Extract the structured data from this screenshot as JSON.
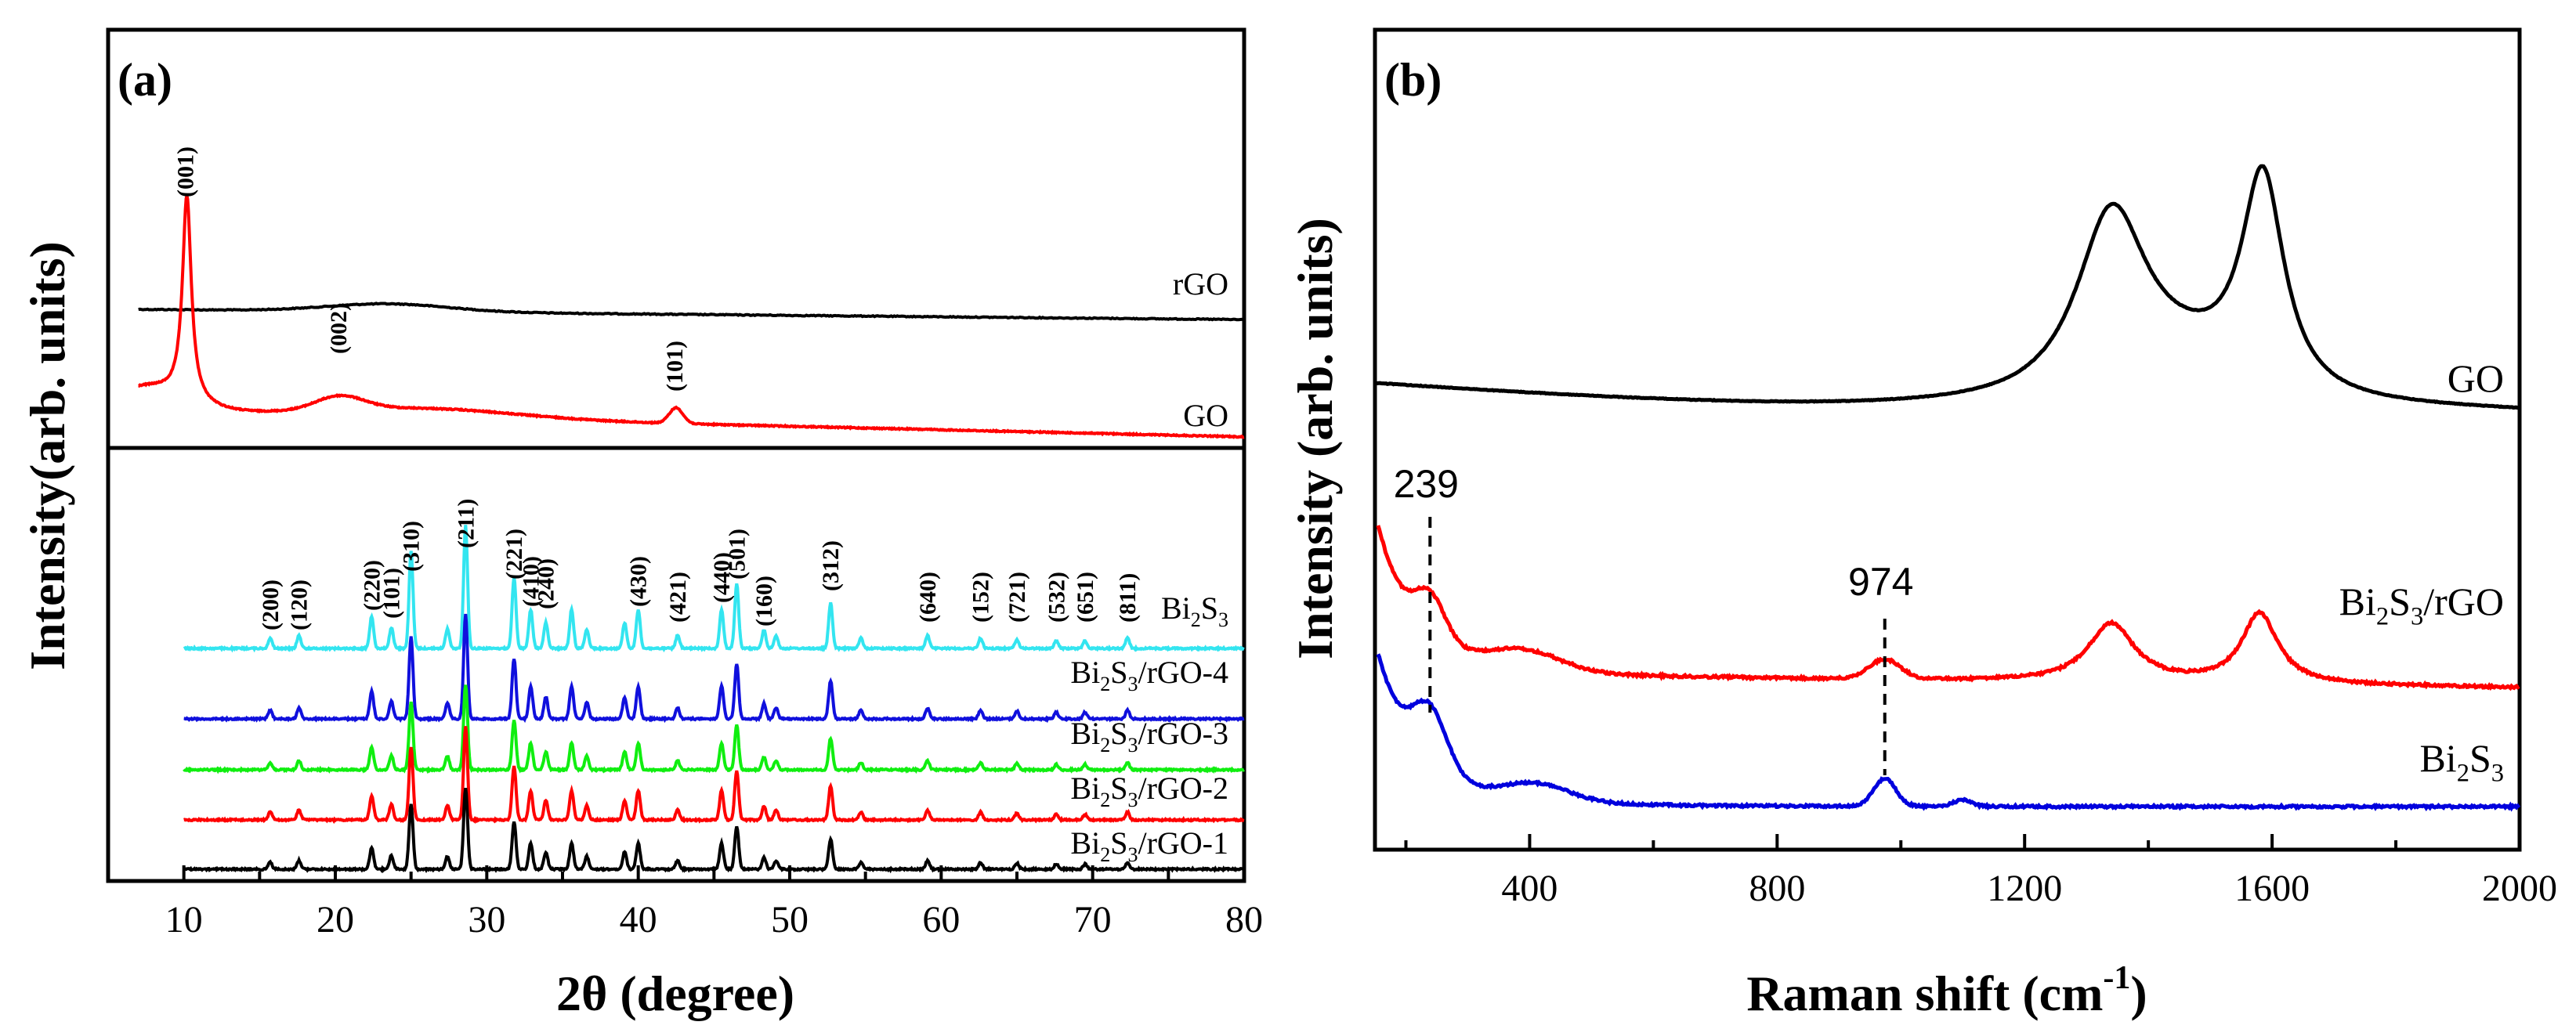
{
  "chart_data": [
    {
      "panel_label": "(a)",
      "type": "line",
      "xlabel": "2θ (degree)",
      "ylabel": "Intensity(arb. units)",
      "xlim": [
        5,
        80
      ],
      "x_ticks": [
        10,
        20,
        30,
        40,
        50,
        60,
        70,
        80
      ],
      "x_tick_labels": [
        "10",
        "20",
        "30",
        "40",
        "50",
        "60",
        "70",
        "80"
      ],
      "top_series": [
        {
          "name": "rGO",
          "label": "rGO",
          "color": "#000000",
          "baseline": 0.63,
          "broad_peak_at": 23.5
        },
        {
          "name": "GO",
          "label": "GO",
          "color": "#ff0000",
          "baseline": 0.12,
          "peaks": [
            {
              "x": 10.2,
              "hkl": "(001)"
            },
            {
              "x": 20.3,
              "hkl": "(002)"
            },
            {
              "x": 42.5,
              "hkl": "(101)"
            }
          ]
        }
      ],
      "bottom_series": [
        {
          "name": "Bi2S3",
          "label_main": "Bi",
          "label_parts": [
            [
              "Bi",
              ""
            ],
            [
              "2",
              "sub"
            ],
            [
              "S",
              ""
            ],
            [
              "3",
              "sub"
            ]
          ],
          "color": "#33e5f0",
          "offset": 4
        },
        {
          "name": "Bi2S3/rGO-4",
          "label_parts": [
            [
              "Bi",
              ""
            ],
            [
              "2",
              "sub"
            ],
            [
              "S",
              ""
            ],
            [
              "3",
              "sub"
            ],
            [
              "/rGO-4",
              ""
            ]
          ],
          "color": "#1010dd",
          "offset": 3
        },
        {
          "name": "Bi2S3/rGO-3",
          "label_parts": [
            [
              "Bi",
              ""
            ],
            [
              "2",
              "sub"
            ],
            [
              "S",
              ""
            ],
            [
              "3",
              "sub"
            ],
            [
              "/rGO-3",
              ""
            ]
          ],
          "color": "#10ee10",
          "offset": 2
        },
        {
          "name": "Bi2S3/rGO-2",
          "label_parts": [
            [
              "Bi",
              ""
            ],
            [
              "2",
              "sub"
            ],
            [
              "S",
              ""
            ],
            [
              "3",
              "sub"
            ],
            [
              "/rGO-2",
              ""
            ]
          ],
          "color": "#ff0000",
          "offset": 1
        },
        {
          "name": "Bi2S3/rGO-1",
          "label_parts": [
            [
              "Bi",
              ""
            ],
            [
              "2",
              "sub"
            ],
            [
              "S",
              ""
            ],
            [
              "3",
              "sub"
            ],
            [
              "/rGO-1",
              ""
            ]
          ],
          "color": "#000000",
          "offset": 0
        }
      ],
      "bi2s3_peaks": [
        {
          "x": 15.7,
          "h": 0.08,
          "hkl": "(200)"
        },
        {
          "x": 17.6,
          "h": 0.1,
          "hkl": "(120)"
        },
        {
          "x": 22.4,
          "h": 0.25,
          "hkl": "(220)"
        },
        {
          "x": 23.7,
          "h": 0.16,
          "hkl": "(101)"
        },
        {
          "x": 25.0,
          "h": 0.75,
          "hkl": "(310)"
        },
        {
          "x": 27.4,
          "h": 0.15,
          "hkl": ""
        },
        {
          "x": 28.6,
          "h": 0.95,
          "hkl": "(211)"
        },
        {
          "x": 31.8,
          "h": 0.55,
          "hkl": "(221)"
        },
        {
          "x": 32.9,
          "h": 0.3,
          "hkl": "(410)"
        },
        {
          "x": 33.9,
          "h": 0.2,
          "hkl": "(240)"
        },
        {
          "x": 35.6,
          "h": 0.3,
          "hkl": ""
        },
        {
          "x": 36.6,
          "h": 0.15,
          "hkl": ""
        },
        {
          "x": 39.1,
          "h": 0.2,
          "hkl": ""
        },
        {
          "x": 40.0,
          "h": 0.3,
          "hkl": "(430)"
        },
        {
          "x": 42.6,
          "h": 0.1,
          "hkl": "(421)"
        },
        {
          "x": 45.5,
          "h": 0.3,
          "hkl": "(440)"
        },
        {
          "x": 46.5,
          "h": 0.5,
          "hkl": "(501)"
        },
        {
          "x": 48.3,
          "h": 0.14,
          "hkl": "(160)"
        },
        {
          "x": 49.1,
          "h": 0.1,
          "hkl": ""
        },
        {
          "x": 52.7,
          "h": 0.35,
          "hkl": "(312)"
        },
        {
          "x": 54.7,
          "h": 0.08,
          "hkl": ""
        },
        {
          "x": 59.1,
          "h": 0.1,
          "hkl": "(640)"
        },
        {
          "x": 62.6,
          "h": 0.08,
          "hkl": "(152)"
        },
        {
          "x": 65.0,
          "h": 0.07,
          "hkl": "(721)"
        },
        {
          "x": 67.6,
          "h": 0.06,
          "hkl": "(532)"
        },
        {
          "x": 69.5,
          "h": 0.06,
          "hkl": "(651)"
        },
        {
          "x": 72.3,
          "h": 0.08,
          "hkl": "(811)"
        }
      ]
    },
    {
      "panel_label": "(b)",
      "type": "line",
      "xlabel": "Raman shift (cm",
      "xlabel_sup": "-1",
      "xlabel_close": ")",
      "ylabel": "Intensity (arb. units)",
      "xlim": [
        150,
        2000
      ],
      "x_ticks": [
        400,
        800,
        1200,
        1600,
        2000
      ],
      "x_tick_labels": [
        "400",
        "800",
        "1200",
        "1600",
        "2000"
      ],
      "series": [
        {
          "name": "GO",
          "label_parts": [
            [
              "GO",
              ""
            ]
          ],
          "color": "#000000",
          "D_band": 1340,
          "G_band": 1585
        },
        {
          "name": "Bi2S3/rGO",
          "label_parts": [
            [
              "Bi",
              ""
            ],
            [
              "2",
              "sub"
            ],
            [
              "S",
              ""
            ],
            [
              "3",
              "sub"
            ],
            [
              "/rGO",
              ""
            ]
          ],
          "color": "#ff0000",
          "peaks": [
            239,
            974,
            1340,
            1580
          ]
        },
        {
          "name": "Bi2S3",
          "label_parts": [
            [
              "Bi",
              ""
            ],
            [
              "2",
              "sub"
            ],
            [
              "S",
              ""
            ],
            [
              "3",
              "sub"
            ]
          ],
          "color": "#0000dd",
          "peaks": [
            239,
            974
          ]
        }
      ],
      "annotations": [
        {
          "x": 239,
          "text": "239"
        },
        {
          "x": 974,
          "text": "974"
        }
      ]
    }
  ]
}
